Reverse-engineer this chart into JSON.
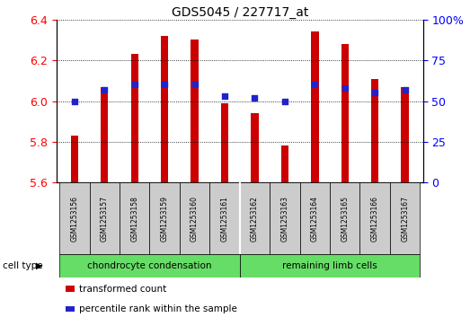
{
  "title": "GDS5045 / 227717_at",
  "samples": [
    "GSM1253156",
    "GSM1253157",
    "GSM1253158",
    "GSM1253159",
    "GSM1253160",
    "GSM1253161",
    "GSM1253162",
    "GSM1253163",
    "GSM1253164",
    "GSM1253165",
    "GSM1253166",
    "GSM1253167"
  ],
  "transformed_count": [
    5.83,
    6.07,
    6.23,
    6.32,
    6.3,
    5.99,
    5.94,
    5.78,
    6.34,
    6.28,
    6.11,
    6.07
  ],
  "percentile_rank": [
    50,
    57,
    60,
    60,
    60,
    53,
    52,
    50,
    60,
    58,
    55,
    57
  ],
  "ylim_left": [
    5.6,
    6.4
  ],
  "ylim_right": [
    0,
    100
  ],
  "yticks_left": [
    5.6,
    5.8,
    6.0,
    6.2,
    6.4
  ],
  "yticks_right": [
    0,
    25,
    50,
    75,
    100
  ],
  "group_boundary": 6,
  "bar_color": "#CC0000",
  "dot_color": "#2222CC",
  "base_value": 5.6,
  "bar_width": 0.25,
  "cell_types": [
    {
      "label": "chondrocyte condensation",
      "color": "#66DD66"
    },
    {
      "label": "remaining limb cells",
      "color": "#66DD66"
    }
  ],
  "legend_items": [
    {
      "label": "transformed count",
      "color": "#CC0000"
    },
    {
      "label": "percentile rank within the sample",
      "color": "#2222CC"
    }
  ],
  "cell_type_label": "cell type"
}
